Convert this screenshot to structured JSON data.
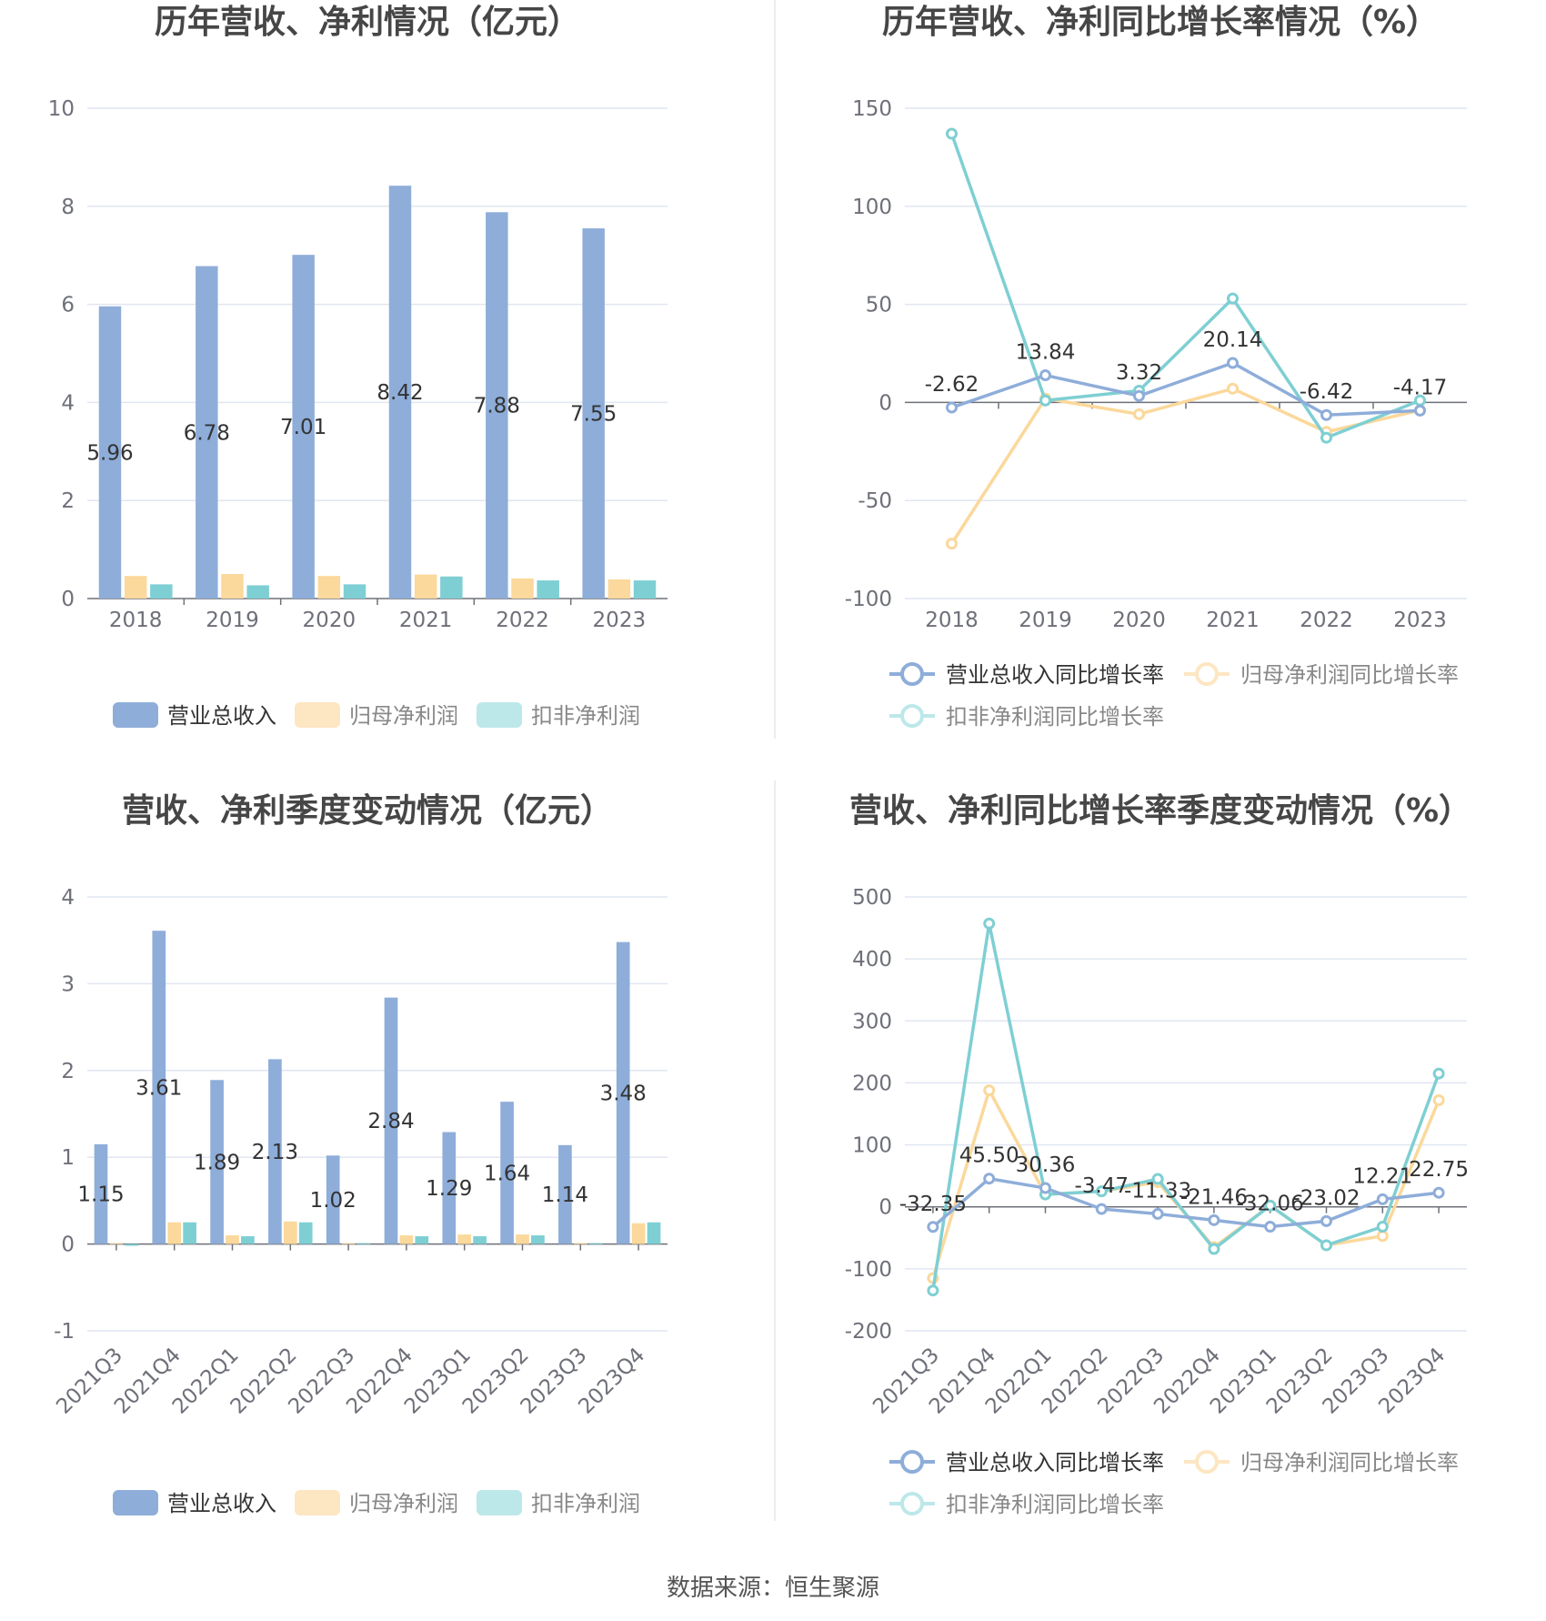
{
  "source_text": "数据来源：恒生聚源",
  "colors": {
    "revenue": "#8eadd9",
    "net_profit": "#fbd89b",
    "deducted": "#7ecfd3",
    "grid": "#e0e6f1",
    "axis": "#6e7079"
  },
  "chart_data": [
    {
      "type": "bar",
      "title": "历年营收、净利情况（亿元）",
      "categories": [
        "2018",
        "2019",
        "2020",
        "2021",
        "2022",
        "2023"
      ],
      "ylim": [
        0,
        10
      ],
      "yticks": [
        "0",
        "2",
        "4",
        "6",
        "8",
        "10"
      ],
      "grid": true,
      "legend_position": "bottom",
      "series": [
        {
          "name": "营业总收入",
          "values": [
            5.96,
            6.78,
            7.01,
            8.42,
            7.88,
            7.55
          ],
          "labels": [
            "5.96",
            "6.78",
            "7.01",
            "8.42",
            "7.88",
            "7.55"
          ]
        },
        {
          "name": "归母净利润",
          "values": [
            0.46,
            0.5,
            0.46,
            0.49,
            0.41,
            0.39
          ]
        },
        {
          "name": "扣非净利润",
          "values": [
            0.29,
            0.27,
            0.29,
            0.45,
            0.37,
            0.37
          ]
        }
      ]
    },
    {
      "type": "line",
      "title": "历年营收、净利同比增长率情况（%）",
      "categories": [
        "2018",
        "2019",
        "2020",
        "2021",
        "2022",
        "2023"
      ],
      "ylim": [
        -100,
        150
      ],
      "yticks": [
        "-100",
        "-50",
        "0",
        "50",
        "100",
        "150"
      ],
      "grid": true,
      "legend_position": "bottom",
      "series": [
        {
          "name": "营业总收入同比增长率",
          "values": [
            -2.62,
            13.84,
            3.32,
            20.14,
            -6.42,
            -4.17
          ],
          "labels": [
            "-2.62",
            "13.84",
            "3.32",
            "20.14",
            "-6.42",
            "-4.17"
          ]
        },
        {
          "name": "归母净利润同比增长率",
          "values": [
            -72,
            2,
            -6,
            7,
            -15,
            -4
          ]
        },
        {
          "name": "扣非净利润同比增长率",
          "values": [
            137,
            1,
            6,
            53,
            -18,
            1
          ]
        }
      ]
    },
    {
      "type": "bar",
      "title": "营收、净利季度变动情况（亿元）",
      "categories": [
        "2021Q3",
        "2021Q4",
        "2022Q1",
        "2022Q2",
        "2022Q3",
        "2022Q4",
        "2023Q1",
        "2023Q2",
        "2023Q3",
        "2023Q4"
      ],
      "ylim": [
        -1,
        4
      ],
      "yticks": [
        "-1",
        "0",
        "1",
        "2",
        "3",
        "4"
      ],
      "grid": true,
      "legend_position": "bottom",
      "series": [
        {
          "name": "营业总收入",
          "values": [
            1.15,
            3.61,
            1.89,
            2.13,
            1.02,
            2.84,
            1.29,
            1.64,
            1.14,
            3.48
          ],
          "labels": [
            "1.15",
            "3.61",
            "1.89",
            "2.13",
            "1.02",
            "2.84",
            "1.29",
            "1.64",
            "1.14",
            "3.48"
          ]
        },
        {
          "name": "归母净利润",
          "values": [
            0.01,
            0.25,
            0.1,
            0.26,
            0.01,
            0.1,
            0.11,
            0.11,
            0.01,
            0.24
          ]
        },
        {
          "name": "扣非净利润",
          "values": [
            -0.02,
            0.25,
            0.09,
            0.25,
            0.01,
            0.09,
            0.09,
            0.1,
            0.01,
            0.25
          ]
        }
      ]
    },
    {
      "type": "line",
      "title": "营收、净利同比增长率季度变动情况（%）",
      "categories": [
        "2021Q3",
        "2021Q4",
        "2022Q1",
        "2022Q2",
        "2022Q3",
        "2022Q4",
        "2023Q1",
        "2023Q2",
        "2023Q3",
        "2023Q4"
      ],
      "ylim": [
        -200,
        500
      ],
      "yticks": [
        "-200",
        "-100",
        "0",
        "100",
        "200",
        "300",
        "400",
        "500"
      ],
      "grid": true,
      "legend_position": "bottom",
      "series": [
        {
          "name": "营业总收入同比增长率",
          "values": [
            -32.35,
            45.5,
            30.36,
            -3.47,
            -11.33,
            -21.46,
            -32.06,
            -23.02,
            12.21,
            22.75
          ],
          "labels": [
            "-32.35",
            "45.50",
            "30.36",
            "-3.47",
            "-11.33",
            "-21.46",
            "-32.06",
            "-23.02",
            "12.21",
            "22.75"
          ]
        },
        {
          "name": "归母净利润同比增长率",
          "values": [
            -115,
            188,
            20,
            25,
            40,
            -65,
            2,
            -62,
            -47,
            172
          ]
        },
        {
          "name": "扣非净利润同比增长率",
          "values": [
            -135,
            457,
            20,
            25,
            45,
            -68,
            2,
            -62,
            -32,
            215
          ]
        }
      ]
    }
  ]
}
